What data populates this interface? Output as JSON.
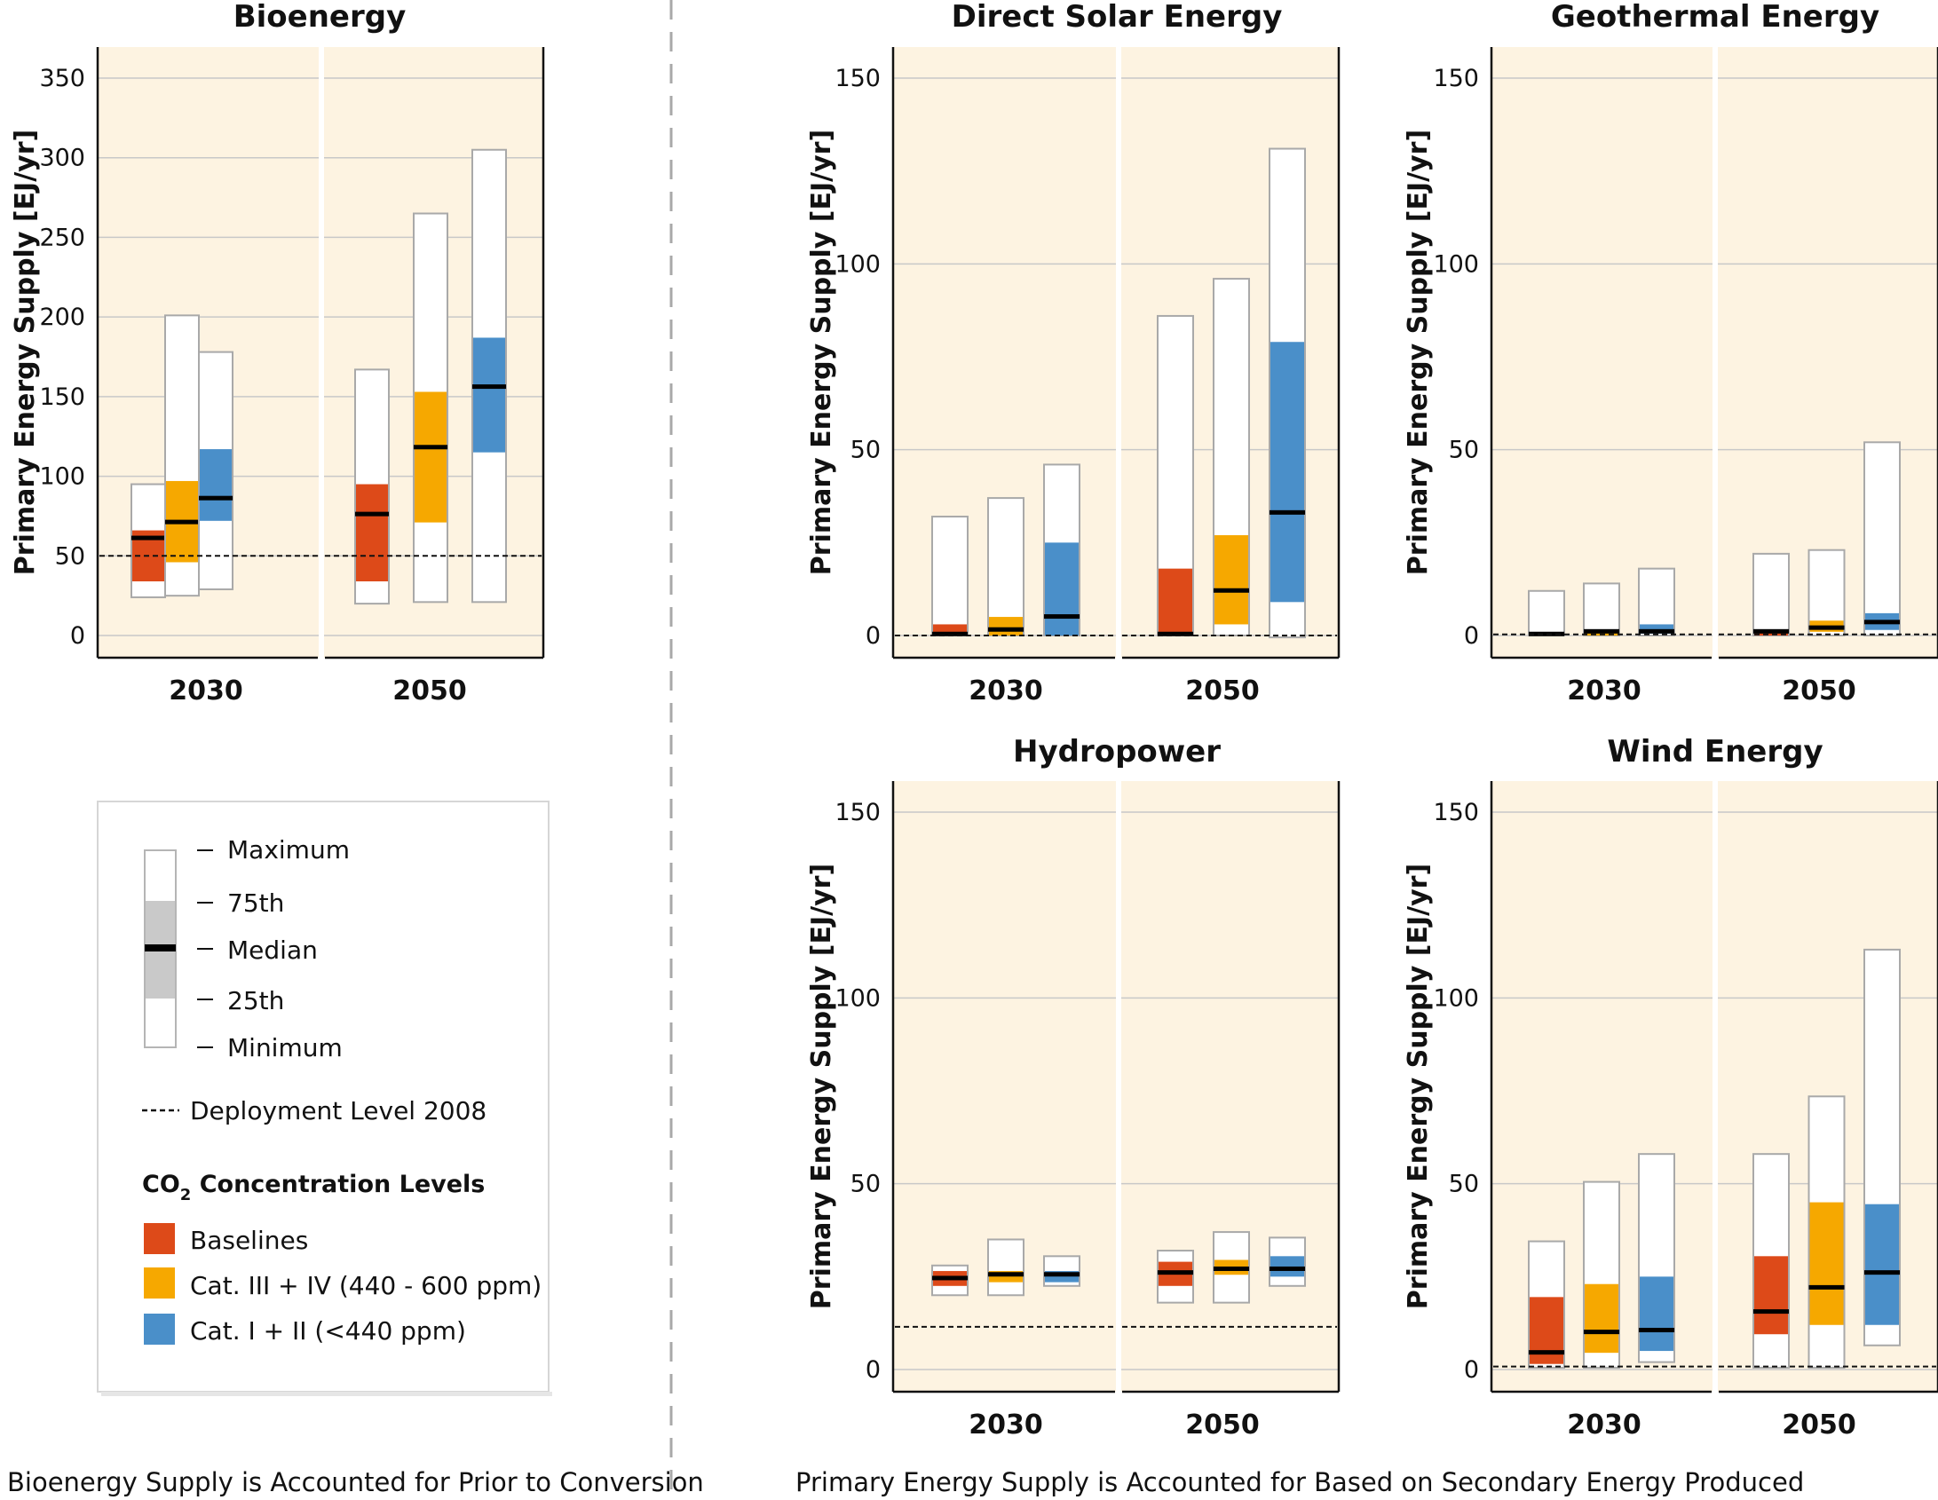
{
  "chart_data": [
    {
      "type": "box",
      "title": "Bioenergy",
      "ylabel": "Primary Energy Supply [EJ/yr]",
      "ylim": [
        0,
        350
      ],
      "yticks": [
        0,
        50,
        100,
        150,
        200,
        250,
        300,
        350
      ],
      "categories": [
        "2030",
        "2050"
      ],
      "deployment_2008": 50,
      "series": [
        {
          "name": "Baselines",
          "boxes": [
            {
              "min": 24,
              "q1": 34,
              "median": 61,
              "q3": 66,
              "max": 95
            },
            {
              "min": 20,
              "q1": 34,
              "median": 76,
              "q3": 95,
              "max": 167
            }
          ]
        },
        {
          "name": "Cat. III + IV (440 - 600 ppm)",
          "boxes": [
            {
              "min": 25,
              "q1": 46,
              "median": 71,
              "q3": 97,
              "max": 201
            },
            {
              "min": 21,
              "q1": 71,
              "median": 118,
              "q3": 153,
              "max": 265
            }
          ]
        },
        {
          "name": "Cat. I + II (<440 ppm)",
          "boxes": [
            {
              "min": 29,
              "q1": 72,
              "median": 86,
              "q3": 117,
              "max": 178
            },
            {
              "min": 21,
              "q1": 115,
              "median": 156,
              "q3": 187,
              "max": 305
            }
          ]
        }
      ]
    },
    {
      "type": "box",
      "title": "Direct Solar Energy",
      "ylabel": "Primary Energy Supply [EJ/yr]",
      "ylim": [
        0,
        150
      ],
      "yticks": [
        0,
        50,
        100,
        150
      ],
      "categories": [
        "2030",
        "2050"
      ],
      "deployment_2008": 0,
      "series": [
        {
          "name": "Baselines",
          "boxes": [
            {
              "min": 0,
              "q1": 0,
              "median": 0.3,
              "q3": 3,
              "max": 32
            },
            {
              "min": 0,
              "q1": 0,
              "median": 0.3,
              "q3": 18,
              "max": 86
            }
          ]
        },
        {
          "name": "Cat. III + IV (440 - 600 ppm)",
          "boxes": [
            {
              "min": 0,
              "q1": 0,
              "median": 1.5,
              "q3": 5,
              "max": 37
            },
            {
              "min": 0,
              "q1": 3,
              "median": 12,
              "q3": 27,
              "max": 96
            }
          ]
        },
        {
          "name": "Cat. I + II (<440 ppm)",
          "boxes": [
            {
              "min": 0,
              "q1": 0,
              "median": 5,
              "q3": 25,
              "max": 46
            },
            {
              "min": -0.5,
              "q1": 9,
              "median": 33,
              "q3": 79,
              "max": 131
            }
          ]
        }
      ]
    },
    {
      "type": "box",
      "title": "Geothermal Energy",
      "ylabel": "Primary Energy Supply [EJ/yr]",
      "ylim": [
        0,
        150
      ],
      "yticks": [
        0,
        50,
        100,
        150
      ],
      "categories": [
        "2030",
        "2050"
      ],
      "deployment_2008": 0.3,
      "series": [
        {
          "name": "Baselines",
          "boxes": [
            {
              "min": 0,
              "q1": 0,
              "median": 0.3,
              "q3": 0.5,
              "max": 12
            },
            {
              "min": 0,
              "q1": 0,
              "median": 1,
              "q3": 1.5,
              "max": 22
            }
          ]
        },
        {
          "name": "Cat. III + IV (440 - 600 ppm)",
          "boxes": [
            {
              "min": 0,
              "q1": 0,
              "median": 1,
              "q3": 1.5,
              "max": 14
            },
            {
              "min": 0,
              "q1": 1,
              "median": 2,
              "q3": 4,
              "max": 23
            }
          ]
        },
        {
          "name": "Cat. I + II (<440 ppm)",
          "boxes": [
            {
              "min": 0,
              "q1": 0.5,
              "median": 1,
              "q3": 3,
              "max": 18
            },
            {
              "min": 0,
              "q1": 1.5,
              "median": 3.5,
              "q3": 6,
              "max": 52
            }
          ]
        }
      ]
    },
    {
      "type": "box",
      "title": "Hydropower",
      "ylabel": "Primary Energy Supply [EJ/yr]",
      "ylim": [
        0,
        150
      ],
      "yticks": [
        0,
        50,
        100,
        150
      ],
      "categories": [
        "2030",
        "2050"
      ],
      "deployment_2008": 11.5,
      "series": [
        {
          "name": "Baselines",
          "boxes": [
            {
              "min": 20,
              "q1": 22.5,
              "median": 24.5,
              "q3": 26.5,
              "max": 28
            },
            {
              "min": 18,
              "q1": 22.5,
              "median": 26,
              "q3": 29,
              "max": 32
            }
          ]
        },
        {
          "name": "Cat. III + IV (440 - 600 ppm)",
          "boxes": [
            {
              "min": 20,
              "q1": 23.5,
              "median": 25.5,
              "q3": 26.5,
              "max": 35
            },
            {
              "min": 18,
              "q1": 25.5,
              "median": 27,
              "q3": 29.5,
              "max": 37
            }
          ]
        },
        {
          "name": "Cat. I + II (<440 ppm)",
          "boxes": [
            {
              "min": 22.5,
              "q1": 23.5,
              "median": 25.5,
              "q3": 26.5,
              "max": 30.5
            },
            {
              "min": 22.5,
              "q1": 25,
              "median": 27,
              "q3": 30.5,
              "max": 35.5
            }
          ]
        }
      ]
    },
    {
      "type": "box",
      "title": "Wind Energy",
      "ylabel": "Primary Energy Supply [EJ/yr]",
      "ylim": [
        0,
        150
      ],
      "yticks": [
        0,
        50,
        100,
        150
      ],
      "categories": [
        "2030",
        "2050"
      ],
      "deployment_2008": 0.8,
      "series": [
        {
          "name": "Baselines",
          "boxes": [
            {
              "min": 0.5,
              "q1": 1.5,
              "median": 4.5,
              "q3": 19.5,
              "max": 34.5
            },
            {
              "min": 0.5,
              "q1": 9.5,
              "median": 15.5,
              "q3": 30.5,
              "max": 58
            }
          ]
        },
        {
          "name": "Cat. III + IV (440 - 600 ppm)",
          "boxes": [
            {
              "min": 0.5,
              "q1": 4.5,
              "median": 10,
              "q3": 23,
              "max": 50.5
            },
            {
              "min": 0.5,
              "q1": 12,
              "median": 22,
              "q3": 45,
              "max": 73.5
            }
          ]
        },
        {
          "name": "Cat. I + II (<440 ppm)",
          "boxes": [
            {
              "min": 2,
              "q1": 5,
              "median": 10.5,
              "q3": 25,
              "max": 58
            },
            {
              "min": 6.5,
              "q1": 12,
              "median": 26,
              "q3": 44.5,
              "max": 113
            }
          ]
        }
      ]
    }
  ],
  "legend": {
    "stats": [
      "Maximum",
      "75th",
      "Median",
      "25th",
      "Minimum"
    ],
    "deployment_label": "Deployment Level 2008",
    "co2_heading_prefix": "CO",
    "co2_heading_sub": "2",
    "co2_heading_suffix": " Concentration Levels",
    "categories": [
      {
        "label": "Baselines",
        "color": "#dd4a19"
      },
      {
        "label": "Cat. III + IV (440 - 600 ppm)",
        "color": "#f6a800"
      },
      {
        "label": "Cat. I + II (<440 ppm)",
        "color": "#4a8fc9"
      }
    ]
  },
  "notes": {
    "left": "Bioenergy Supply is Accounted for Prior to Conversion",
    "right": "Primary Energy Supply is Accounted for Based on Secondary Energy Produced"
  },
  "colors": {
    "panel_bg": "#fdf3e1",
    "grid": "#c8c8c8",
    "box_border": "#a9a9a9",
    "median": "#000000"
  }
}
